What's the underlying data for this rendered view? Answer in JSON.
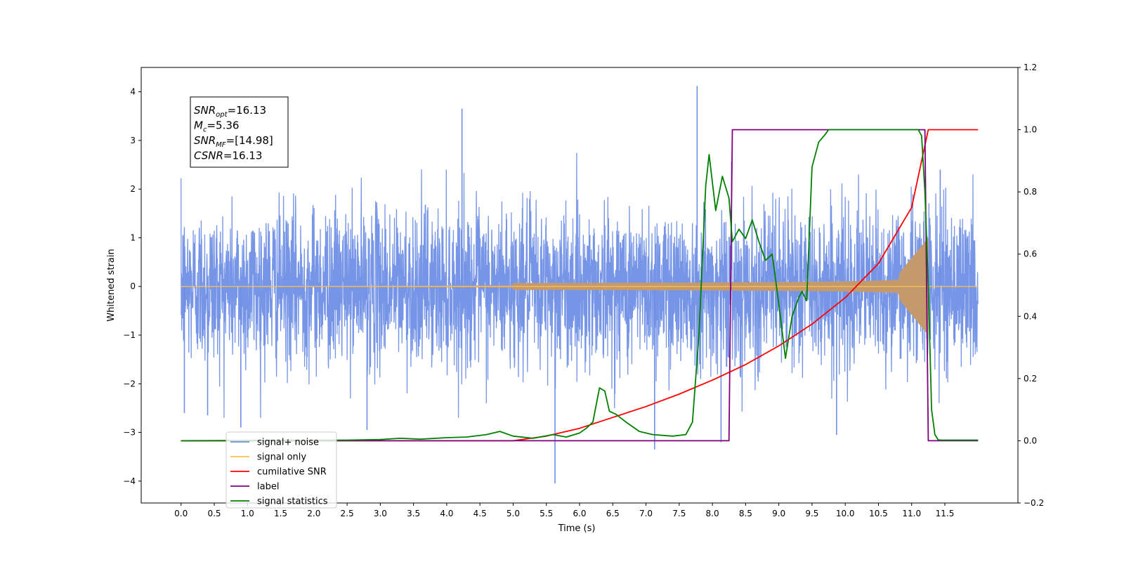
{
  "chart_data": {
    "type": "line",
    "xlabel": "Time (s)",
    "ylabel_left": "Whitened strain",
    "ylabel_right": "",
    "xlim": [
      -0.6,
      12.6
    ],
    "ylim_left": [
      -4.45,
      4.5
    ],
    "ylim_right": [
      -0.2,
      1.2
    ],
    "grid": false,
    "x_ticks": [
      0.0,
      0.5,
      1.0,
      1.5,
      2.0,
      2.5,
      3.0,
      3.5,
      4.0,
      4.5,
      5.0,
      5.5,
      6.0,
      6.5,
      7.0,
      7.5,
      8.0,
      8.5,
      9.0,
      9.5,
      10.0,
      10.5,
      11.0,
      11.5
    ],
    "x_tick_labels": [
      "0.0",
      "0.5",
      "1.0",
      "1.5",
      "2.0",
      "2.5",
      "3.0",
      "3.5",
      "4.0",
      "4.5",
      "5.0",
      "5.5",
      "6.0",
      "6.5",
      "7.0",
      "7.5",
      "8.0",
      "8.5",
      "9.0",
      "9.5",
      "10.0",
      "10.5",
      "11.0",
      "11.5"
    ],
    "y_left_ticks": [
      -4,
      -3,
      -2,
      -1,
      0,
      1,
      2,
      3,
      4
    ],
    "y_left_tick_labels": [
      "−4",
      "−3",
      "−2",
      "−1",
      "0",
      "1",
      "2",
      "3",
      "4"
    ],
    "y_right_ticks": [
      -0.2,
      0.0,
      0.2,
      0.4,
      0.6,
      0.8,
      1.0,
      1.2
    ],
    "y_right_tick_labels": [
      "−0.2",
      "0.0",
      "0.2",
      "0.4",
      "0.6",
      "0.8",
      "1.0",
      "1.2"
    ],
    "annotation": {
      "lines": [
        {
          "base": "SNR",
          "sub": "opt",
          "value": "=16.13"
        },
        {
          "base": "M",
          "sub": "c",
          "value": "=5.36"
        },
        {
          "base": "SNR",
          "sub": "MF",
          "value": "=[14.98]"
        },
        {
          "base": "CSNR",
          "sub": "",
          "value": "=16.13"
        }
      ]
    },
    "legend": {
      "placement": "lower-left",
      "entries": [
        {
          "label": "signal+ noise",
          "color": "#6f8fe6"
        },
        {
          "label": "signal only",
          "color": "#ffc04d"
        },
        {
          "label": "cumilative SNR",
          "color": "#ff0000"
        },
        {
          "label": "label",
          "color": "#800080"
        },
        {
          "label": "signal statistics",
          "color": "#008000"
        }
      ]
    },
    "series": [
      {
        "name": "signal+ noise",
        "axis": "left",
        "color": "#6f8fe6",
        "x_range": [
          0.0,
          12.0
        ],
        "envelope_typical": 1.6,
        "outliers": [
          [
            0.05,
            -2.6
          ],
          [
            0.4,
            -2.65
          ],
          [
            0.9,
            -2.9
          ],
          [
            2.8,
            -2.95
          ],
          [
            4.23,
            3.65
          ],
          [
            5.63,
            -4.05
          ],
          [
            7.13,
            -3.35
          ],
          [
            7.77,
            4.12
          ],
          [
            8.13,
            -3.2
          ],
          [
            9.87,
            -3.05
          ],
          [
            11.43,
            2.4
          ]
        ]
      },
      {
        "name": "signal only",
        "axis": "left",
        "color": "#ffc04d",
        "chirp_start": 5.0,
        "chirp_peak": 11.25,
        "peak_amplitude": 1.0
      },
      {
        "name": "cumilative SNR",
        "axis": "right",
        "color": "#ff0000",
        "x": [
          0,
          5.0,
          5.5,
          6.0,
          6.5,
          7.0,
          7.5,
          8.0,
          8.5,
          9.0,
          9.5,
          10.0,
          10.5,
          11.0,
          11.25,
          11.3,
          12.0
        ],
        "y": [
          0,
          0.0,
          0.015,
          0.04,
          0.075,
          0.11,
          0.15,
          0.195,
          0.245,
          0.305,
          0.375,
          0.46,
          0.57,
          0.75,
          1.0,
          1.0,
          1.0
        ]
      },
      {
        "name": "label",
        "axis": "right",
        "color": "#800080",
        "x": [
          0,
          8.25,
          8.3,
          11.2,
          11.25,
          12.0
        ],
        "y": [
          0,
          0,
          1.0,
          1.0,
          0,
          0
        ]
      },
      {
        "name": "signal statistics",
        "axis": "right",
        "color": "#008000",
        "x": [
          0,
          2.5,
          3.0,
          3.3,
          3.6,
          4.0,
          4.3,
          4.6,
          4.8,
          5.0,
          5.3,
          5.6,
          5.8,
          6.0,
          6.1,
          6.2,
          6.3,
          6.38,
          6.45,
          6.55,
          6.7,
          6.9,
          7.1,
          7.4,
          7.6,
          7.7,
          7.8,
          7.9,
          7.95,
          8.05,
          8.15,
          8.25,
          8.3,
          8.4,
          8.5,
          8.6,
          8.7,
          8.8,
          8.9,
          9.0,
          9.1,
          9.2,
          9.3,
          9.35,
          9.42,
          9.5,
          9.6,
          9.7,
          9.75,
          9.85,
          10.0,
          10.5,
          11.0,
          11.1,
          11.15,
          11.2,
          11.25,
          11.3,
          11.35,
          11.4,
          11.45,
          11.5,
          12.0
        ],
        "y": [
          0,
          0.002,
          0.004,
          0.008,
          0.005,
          0.01,
          0.012,
          0.02,
          0.03,
          0.015,
          0.008,
          0.02,
          0.012,
          0.025,
          0.04,
          0.06,
          0.17,
          0.16,
          0.095,
          0.085,
          0.06,
          0.03,
          0.02,
          0.015,
          0.02,
          0.06,
          0.35,
          0.82,
          0.92,
          0.74,
          0.85,
          0.78,
          0.64,
          0.68,
          0.65,
          0.71,
          0.64,
          0.58,
          0.6,
          0.44,
          0.265,
          0.4,
          0.46,
          0.48,
          0.45,
          0.88,
          0.96,
          0.985,
          1.0,
          1.0,
          1.0,
          1.0,
          1.0,
          1.0,
          0.98,
          0.8,
          0.5,
          0.1,
          0.02,
          0.003,
          0.002,
          0.002,
          0.002
        ]
      }
    ]
  }
}
